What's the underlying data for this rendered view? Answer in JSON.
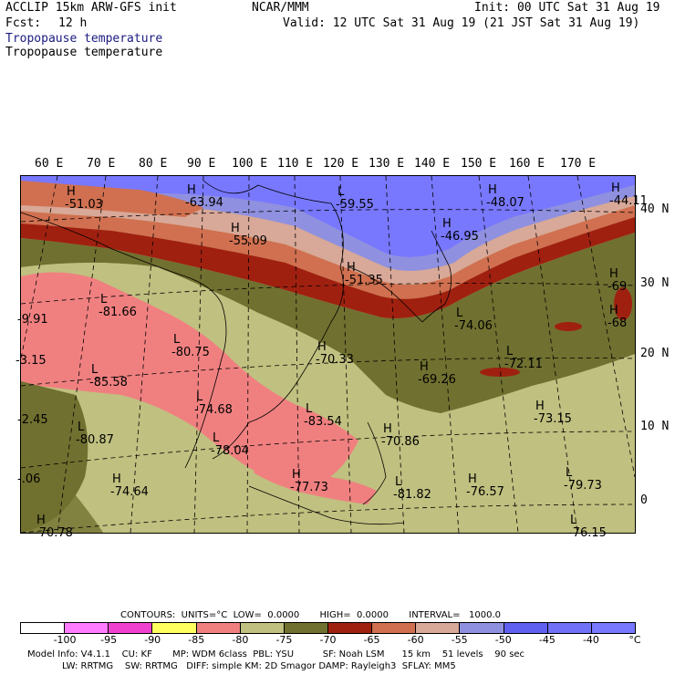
{
  "header": {
    "model": "ACCLIP 15km ARW-GFS init",
    "org": "NCAR/MMM",
    "init": "Init: 00 UTC Sat 31 Aug 19",
    "fcst_label": "Fcst:",
    "fcst_value": "12 h",
    "valid": "Valid: 12 UTC Sat 31 Aug 19 (21 JST Sat 31 Aug 19)",
    "field_title_1": "Tropopause temperature",
    "field_title_2": "Tropopause temperature"
  },
  "map": {
    "lon_labels": [
      "60 E",
      "70 E",
      "80 E",
      "90 E",
      "100 E",
      "110 E",
      "120 E",
      "130 E",
      "140 E",
      "150 E",
      "160 E",
      "170 E"
    ],
    "lat_labels": [
      "40 N",
      "30 N",
      "20 N",
      "10 N",
      "0"
    ],
    "extrema": [
      {
        "type": "H",
        "value": "-51.03"
      },
      {
        "type": "H",
        "value": "-63.94"
      },
      {
        "type": "L",
        "value": "-59.55"
      },
      {
        "type": "H",
        "value": "-48.07"
      },
      {
        "type": "H",
        "value": "-44.11"
      },
      {
        "type": "H",
        "value": "-55.09"
      },
      {
        "type": "H",
        "value": "-46.95"
      },
      {
        "type": "H",
        "value": "-51.35"
      },
      {
        "type": "H",
        "value": "-69"
      },
      {
        "type": "H",
        "value": "-68"
      },
      {
        "type": "L",
        "value": "-81.66"
      },
      {
        "type": "L",
        "value": "-80.75"
      },
      {
        "type": "L",
        "value": "-74.06"
      },
      {
        "type": "H",
        "value": "-70.33"
      },
      {
        "type": "L",
        "value": "-72.11"
      },
      {
        "type": "L",
        "value": "-85.58"
      },
      {
        "type": "L",
        "value": "-74.68"
      },
      {
        "type": "H",
        "value": "-69.26"
      },
      {
        "type": "L",
        "value": "-83.54"
      },
      {
        "type": "H",
        "value": "-73.15"
      },
      {
        "type": "L",
        "value": "-80.87"
      },
      {
        "type": "L",
        "value": "-78.04"
      },
      {
        "type": "H",
        "value": "-70.86"
      },
      {
        "type": "H",
        "value": "-74.64"
      },
      {
        "type": "H",
        "value": "-77.73"
      },
      {
        "type": "L",
        "value": "-81.82"
      },
      {
        "type": "H",
        "value": "-76.57"
      },
      {
        "type": "L",
        "value": "-79.73"
      },
      {
        "type": "L",
        "value": "-76.15"
      },
      {
        "type": "",
        "value": "-9.91"
      },
      {
        "type": "",
        "value": "-3.15"
      },
      {
        "type": "",
        "value": "-2.45"
      },
      {
        "type": "",
        "value": "-.06"
      },
      {
        "type": "H",
        "value": "-70.78"
      }
    ]
  },
  "contours_line": "CONTOURS:  UNITS=°C  LOW=  0.0000       HIGH=  0.0000       INTERVAL=   1000.0",
  "legend": {
    "colors": [
      "#ffffff",
      "#ff7bff",
      "#f040d0",
      "#ffff60",
      "#f08080",
      "#c0c080",
      "#707030",
      "#a02010",
      "#d07050",
      "#d8a898",
      "#9090e0",
      "#6060f0",
      "#7070f8",
      "#7878ff"
    ],
    "ticks": [
      "-100",
      "-95",
      "-90",
      "-85",
      "-80",
      "-75",
      "-70",
      "-65",
      "-60",
      "-55",
      "-50",
      "-45",
      "-40",
      "°C"
    ]
  },
  "footer": {
    "line1": "Model Info: V4.1.1    CU: KF       MP: WDM 6class  PBL: YSU          SF: Noah LSM      15 km    51 levels    90 sec",
    "line2": "LW: RRTMG    SW: RRTMG   DIFF: simple KM: 2D Smagor DAMP: Rayleigh3  SFLAY: MM5"
  }
}
